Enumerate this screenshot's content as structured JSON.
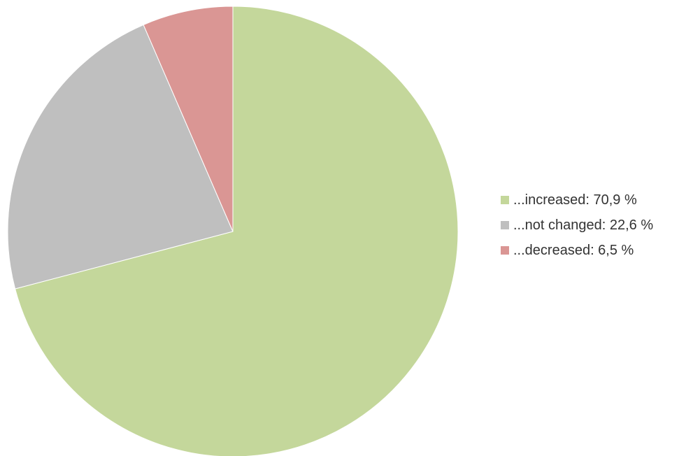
{
  "chart_data": {
    "type": "pie",
    "title": "",
    "slices": [
      {
        "label": "...increased: 70,9 %",
        "value": 70.9,
        "color": "#c4d79b"
      },
      {
        "label": "...not changed: 22,6 %",
        "value": 22.6,
        "color": "#bfbfbf"
      },
      {
        "label": "...decreased: 6,5 %",
        "value": 6.5,
        "color": "#da9694"
      }
    ],
    "legend": {
      "position": "right"
    },
    "start_angle": "12 o'clock",
    "direction": "clockwise"
  }
}
